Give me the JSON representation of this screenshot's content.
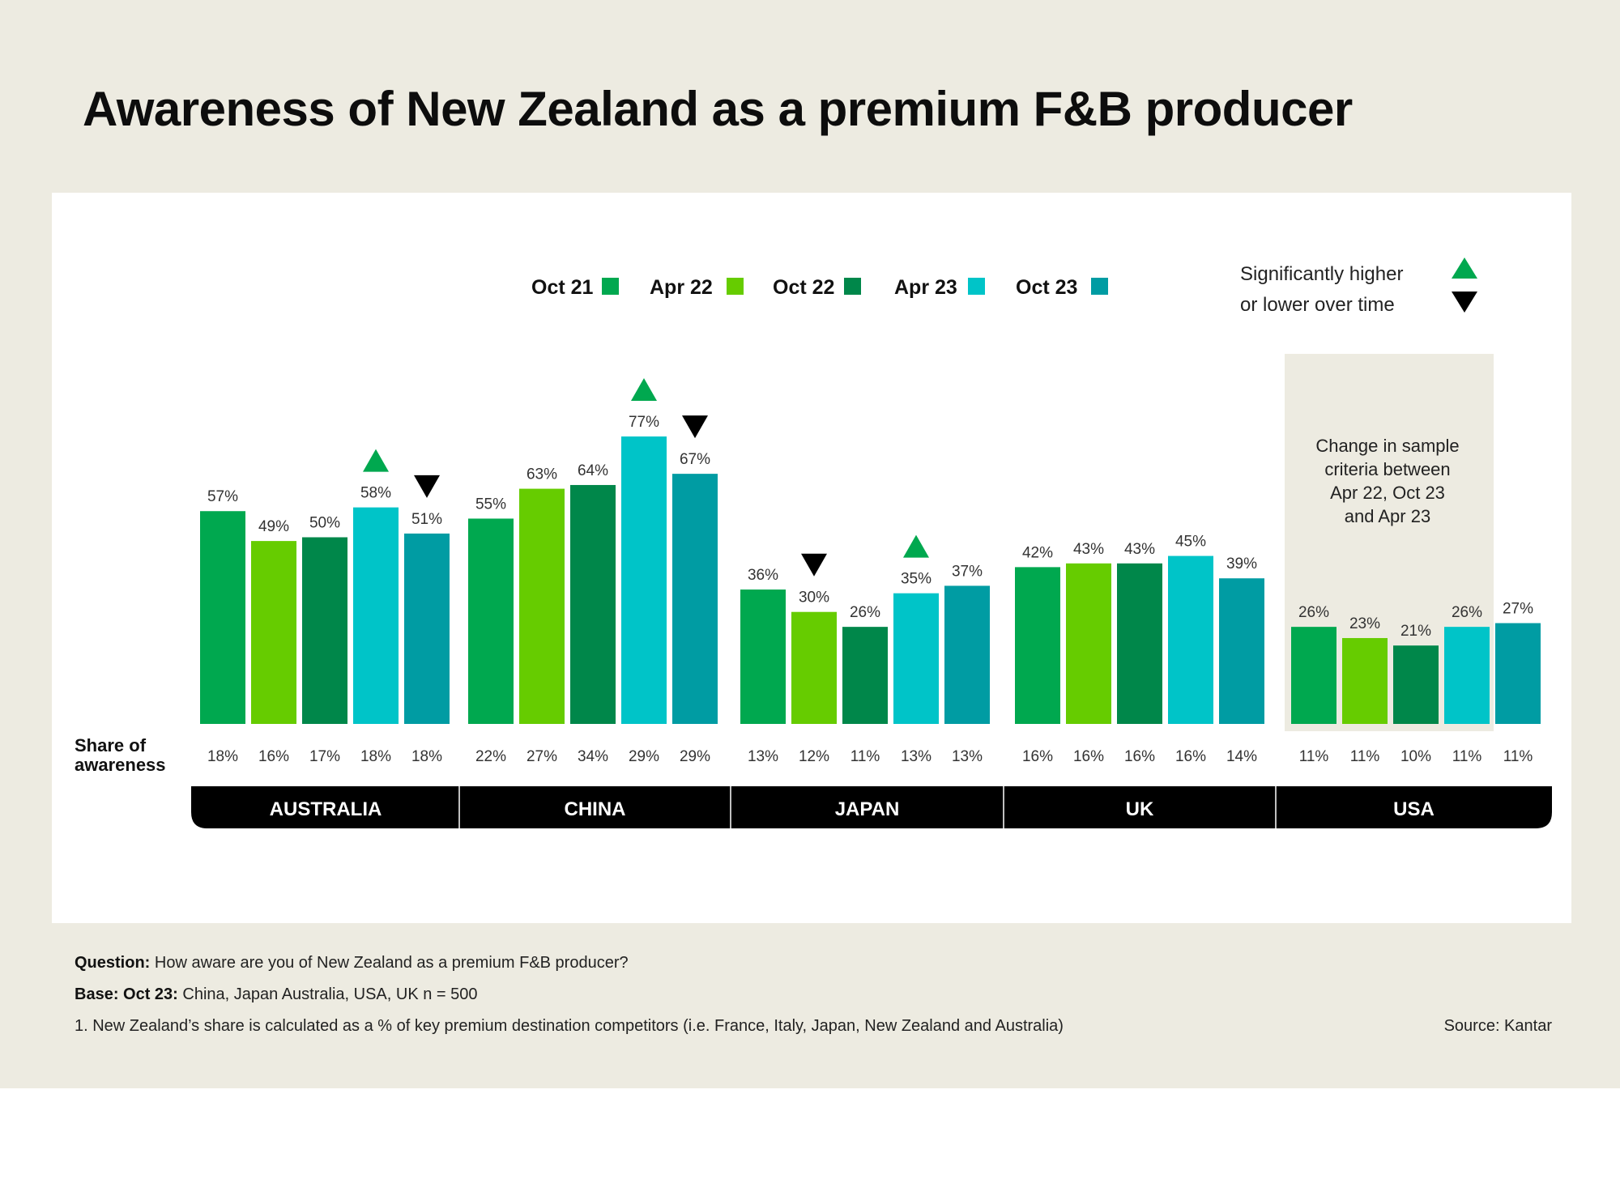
{
  "title": "Awareness of New Zealand as a premium F&B producer",
  "chart_data": {
    "type": "bar",
    "groups": [
      "AUSTRALIA",
      "CHINA",
      "JAPAN",
      "UK",
      "USA"
    ],
    "series": [
      {
        "name": "Oct 21",
        "color": "#00a84f",
        "values": [
          57,
          55,
          36,
          42,
          26
        ],
        "value_labels": [
          "57%",
          "55%",
          "36%",
          "42%",
          "26%"
        ],
        "share_labels": [
          "18%",
          "22%",
          "13%",
          "16%",
          "11%"
        ]
      },
      {
        "name": "Apr 22",
        "color": "#66cc00",
        "values": [
          49,
          63,
          30,
          43,
          23
        ],
        "value_labels": [
          "49%",
          "63%",
          "30%",
          "43%",
          "23%"
        ],
        "share_labels": [
          "16%",
          "27%",
          "12%",
          "16%",
          "11%"
        ]
      },
      {
        "name": "Oct 22",
        "color": "#00874a",
        "values": [
          50,
          64,
          26,
          43,
          21
        ],
        "value_labels": [
          "50%",
          "64%",
          "26%",
          "43%",
          "21%"
        ],
        "share_labels": [
          "17%",
          "34%",
          "11%",
          "16%",
          "10%"
        ]
      },
      {
        "name": "Apr 23",
        "color": "#00c4c8",
        "values": [
          58,
          77,
          35,
          45,
          26
        ],
        "value_labels": [
          "58%",
          "77%",
          "35%",
          "45%",
          "26%"
        ],
        "share_labels": [
          "18%",
          "29%",
          "13%",
          "16%",
          "11%"
        ]
      },
      {
        "name": "Oct 23",
        "color": "#009ca3",
        "values": [
          51,
          67,
          37,
          39,
          27
        ],
        "value_labels": [
          "51%",
          "67%",
          "37%",
          "39%",
          "27%"
        ],
        "share_labels": [
          "18%",
          "29%",
          "13%",
          "14%",
          "11%"
        ]
      }
    ],
    "significance": [
      {
        "group": "AUSTRALIA",
        "series": "Apr 23",
        "direction": "up"
      },
      {
        "group": "AUSTRALIA",
        "series": "Oct 23",
        "direction": "down"
      },
      {
        "group": "CHINA",
        "series": "Apr 23",
        "direction": "up"
      },
      {
        "group": "CHINA",
        "series": "Oct 23",
        "direction": "down"
      },
      {
        "group": "JAPAN",
        "series": "Apr 22",
        "direction": "down"
      },
      {
        "group": "JAPAN",
        "series": "Apr 23",
        "direction": "up"
      }
    ],
    "ylim": [
      0,
      100
    ],
    "share_row_label": [
      "Share of",
      "awareness"
    ],
    "legend_position": "top-center",
    "significance_legend": [
      "Significantly higher",
      "or lower over time"
    ],
    "usa_note": [
      "Change in sample",
      "criteria between",
      "Apr 22, Oct 23",
      "and Apr 23"
    ],
    "colors": {
      "up_marker": "#00a84f",
      "down_marker": "#000000",
      "group_bar": "#000000",
      "note_box": "#edebe1"
    }
  },
  "footer": {
    "question_label": "Question:",
    "question_text": " How aware are you of New Zealand as a premium F&B producer?",
    "base_label": "Base: Oct 23:",
    "base_text": " China, Japan Australia, USA, UK n = 500",
    "note": "1.  New Zealand’s share is calculated as a % of key premium destination competitors (i.e. France, Italy, Japan, New Zealand and Australia)",
    "source": "Source: Kantar"
  }
}
